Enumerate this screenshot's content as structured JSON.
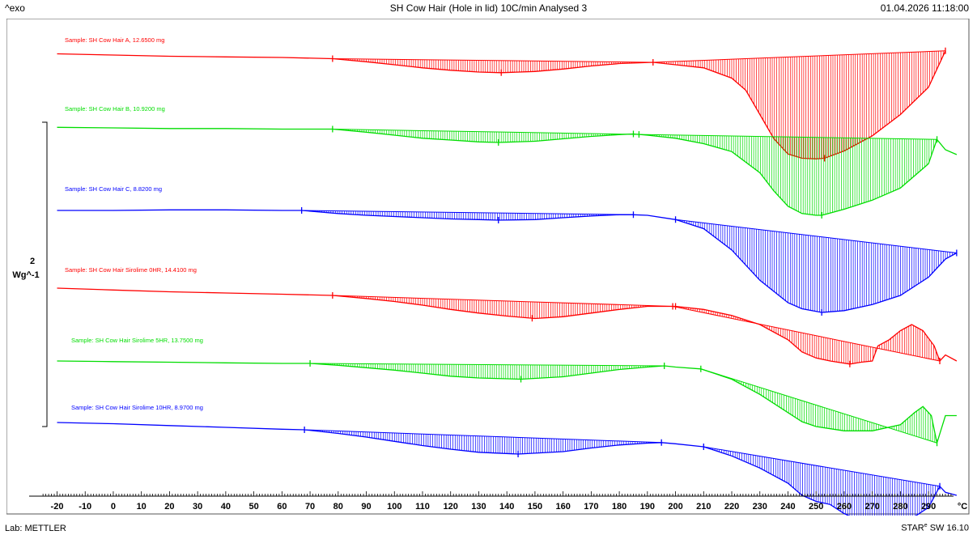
{
  "header": {
    "exo_label": "^exo",
    "title": "SH Cow Hair (Hole in lid) 10C/min Analysed 3",
    "datetime": "01.04.2026 11:18:00"
  },
  "footer": {
    "lab": "Lab: METTLER",
    "software_prefix": "STAR",
    "software_mark": "e",
    "software_suffix": " SW 16.10"
  },
  "chart_data": {
    "type": "line",
    "title": "SH Cow Hair (Hole in lid) 10C/min Analysed 3",
    "xlabel": "°C",
    "xlim": [
      -25,
      300
    ],
    "xticks": [
      -20,
      -10,
      0,
      10,
      20,
      30,
      40,
      50,
      60,
      70,
      80,
      90,
      100,
      110,
      120,
      130,
      140,
      150,
      160,
      170,
      180,
      190,
      200,
      210,
      220,
      230,
      240,
      250,
      260,
      270,
      280,
      290
    ],
    "scale_bar": {
      "value": "2",
      "unit": "Wg^-1"
    },
    "grid": false,
    "series": [
      {
        "name": "Sample: SH Cow Hair A, 12.6500 mg",
        "color": "#ff0000",
        "x": [
          -20,
          0,
          20,
          40,
          60,
          78,
          90,
          100,
          110,
          120,
          130,
          138,
          150,
          160,
          170,
          180,
          192,
          200,
          210,
          220,
          225,
          230,
          235,
          240,
          245,
          250,
          253,
          260,
          270,
          280,
          290,
          296
        ],
        "y": [
          0.1,
          0.08,
          0.06,
          0.05,
          0.04,
          0.02,
          -0.03,
          -0.08,
          -0.13,
          -0.17,
          -0.2,
          -0.21,
          -0.19,
          -0.15,
          -0.1,
          -0.06,
          -0.04,
          -0.08,
          -0.13,
          -0.3,
          -0.5,
          -0.9,
          -1.3,
          -1.55,
          -1.62,
          -1.63,
          -1.62,
          -1.5,
          -1.25,
          -0.9,
          -0.45,
          0.15
        ],
        "integrations": [
          [
            78,
            192
          ],
          [
            192,
            296
          ]
        ],
        "markers": [
          78,
          138,
          192,
          253,
          296
        ]
      },
      {
        "name": "Sample: SH Cow Hair B, 10.9200 mg",
        "color": "#00dd00",
        "x": [
          -20,
          0,
          20,
          40,
          60,
          78,
          90,
          100,
          110,
          120,
          130,
          137,
          150,
          160,
          170,
          180,
          185,
          190,
          200,
          210,
          220,
          230,
          235,
          240,
          245,
          250,
          252,
          260,
          270,
          280,
          290,
          293,
          296,
          300
        ],
        "y": [
          0.05,
          0.04,
          0.03,
          0.03,
          0.02,
          0.02,
          -0.03,
          -0.08,
          -0.13,
          -0.16,
          -0.19,
          -0.2,
          -0.18,
          -0.14,
          -0.1,
          -0.07,
          -0.06,
          -0.08,
          -0.13,
          -0.22,
          -0.35,
          -0.7,
          -1.0,
          -1.25,
          -1.37,
          -1.4,
          -1.4,
          -1.3,
          -1.15,
          -0.95,
          -0.55,
          -0.15,
          -0.32,
          -0.4
        ],
        "integrations": [
          [
            78,
            187
          ],
          [
            187,
            293
          ]
        ],
        "markers": [
          78,
          137,
          185,
          187,
          252,
          293
        ]
      },
      {
        "name": "Sample: SH Cow Hair C, 8.8200 mg",
        "color": "#0000ff",
        "x": [
          -20,
          0,
          20,
          40,
          60,
          67,
          80,
          90,
          100,
          110,
          120,
          130,
          137,
          150,
          160,
          170,
          180,
          185,
          190,
          200,
          210,
          220,
          230,
          240,
          245,
          252,
          260,
          270,
          280,
          290,
          296,
          300
        ],
        "y": [
          0.0,
          0.0,
          0.01,
          0.01,
          0.0,
          0.0,
          -0.05,
          -0.08,
          -0.1,
          -0.12,
          -0.14,
          -0.15,
          -0.16,
          -0.15,
          -0.12,
          -0.09,
          -0.07,
          -0.07,
          -0.08,
          -0.15,
          -0.3,
          -0.65,
          -1.15,
          -1.52,
          -1.62,
          -1.68,
          -1.65,
          -1.55,
          -1.4,
          -1.1,
          -0.8,
          -0.7
        ],
        "integrations": [
          [
            67,
            185
          ],
          [
            200,
            300
          ]
        ],
        "markers": [
          67,
          137,
          185,
          200,
          252,
          300
        ]
      },
      {
        "name": "Sample: SH Cow Hair Sirolime 0HR, 14.4100 mg",
        "color": "#ff0000",
        "x": [
          -20,
          0,
          20,
          40,
          60,
          78,
          90,
          100,
          110,
          120,
          130,
          140,
          150,
          160,
          170,
          180,
          190,
          200,
          210,
          220,
          230,
          240,
          245,
          250,
          255,
          262,
          266,
          270,
          272,
          276,
          280,
          284,
          288,
          292,
          294,
          296,
          300
        ],
        "y": [
          0.0,
          -0.03,
          -0.06,
          -0.08,
          -0.1,
          -0.12,
          -0.17,
          -0.22,
          -0.28,
          -0.35,
          -0.41,
          -0.46,
          -0.5,
          -0.47,
          -0.41,
          -0.35,
          -0.3,
          -0.3,
          -0.35,
          -0.45,
          -0.6,
          -0.85,
          -1.05,
          -1.15,
          -1.2,
          -1.25,
          -1.22,
          -1.2,
          -0.95,
          -0.85,
          -0.7,
          -0.6,
          -0.7,
          -0.95,
          -1.2,
          -1.1,
          -1.2
        ],
        "integrations": [
          [
            78,
            199
          ],
          [
            199,
            294
          ]
        ],
        "markers": [
          78,
          149,
          199,
          200,
          262,
          294
        ]
      },
      {
        "name": "Sample: SH Cow Hair Sirolime 5HR, 13.7500 mg",
        "color": "#00dd00",
        "x": [
          -20,
          0,
          20,
          40,
          60,
          70,
          80,
          90,
          100,
          110,
          120,
          130,
          145,
          160,
          170,
          180,
          190,
          196,
          200,
          209,
          220,
          230,
          240,
          245,
          250,
          260,
          270,
          280,
          285,
          288,
          291,
          293,
          296,
          300
        ],
        "y": [
          0.0,
          -0.01,
          -0.02,
          -0.03,
          -0.04,
          -0.04,
          -0.07,
          -0.11,
          -0.15,
          -0.2,
          -0.25,
          -0.28,
          -0.3,
          -0.26,
          -0.2,
          -0.14,
          -0.1,
          -0.08,
          -0.1,
          -0.13,
          -0.3,
          -0.55,
          -0.85,
          -1.0,
          -1.08,
          -1.15,
          -1.15,
          -1.05,
          -0.85,
          -0.75,
          -0.9,
          -1.35,
          -0.9,
          -0.9
        ],
        "integrations": [
          [
            70,
            196
          ],
          [
            209,
            293
          ]
        ],
        "markers": [
          70,
          145,
          196,
          209,
          293
        ]
      },
      {
        "name": "Sample: SH Cow Hair Sirolime 10HR, 8.9700 mg",
        "color": "#0000ff",
        "x": [
          -20,
          0,
          20,
          40,
          60,
          68,
          80,
          90,
          100,
          110,
          120,
          130,
          144,
          160,
          170,
          180,
          190,
          195,
          200,
          210,
          220,
          230,
          240,
          245,
          250,
          255,
          260,
          267,
          275,
          280,
          285,
          290,
          294,
          296,
          300
        ],
        "y": [
          0.0,
          -0.02,
          -0.05,
          -0.08,
          -0.11,
          -0.12,
          -0.18,
          -0.24,
          -0.31,
          -0.38,
          -0.44,
          -0.49,
          -0.52,
          -0.48,
          -0.42,
          -0.37,
          -0.34,
          -0.33,
          -0.35,
          -0.4,
          -0.55,
          -0.75,
          -1.0,
          -1.2,
          -1.3,
          -1.35,
          -1.5,
          -1.65,
          -1.62,
          -1.58,
          -1.55,
          -1.4,
          -1.05,
          -1.15,
          -1.2
        ],
        "integrations": [
          [
            68,
            195
          ],
          [
            210,
            294
          ]
        ],
        "markers": [
          68,
          144,
          195,
          210,
          267,
          294
        ]
      }
    ]
  }
}
